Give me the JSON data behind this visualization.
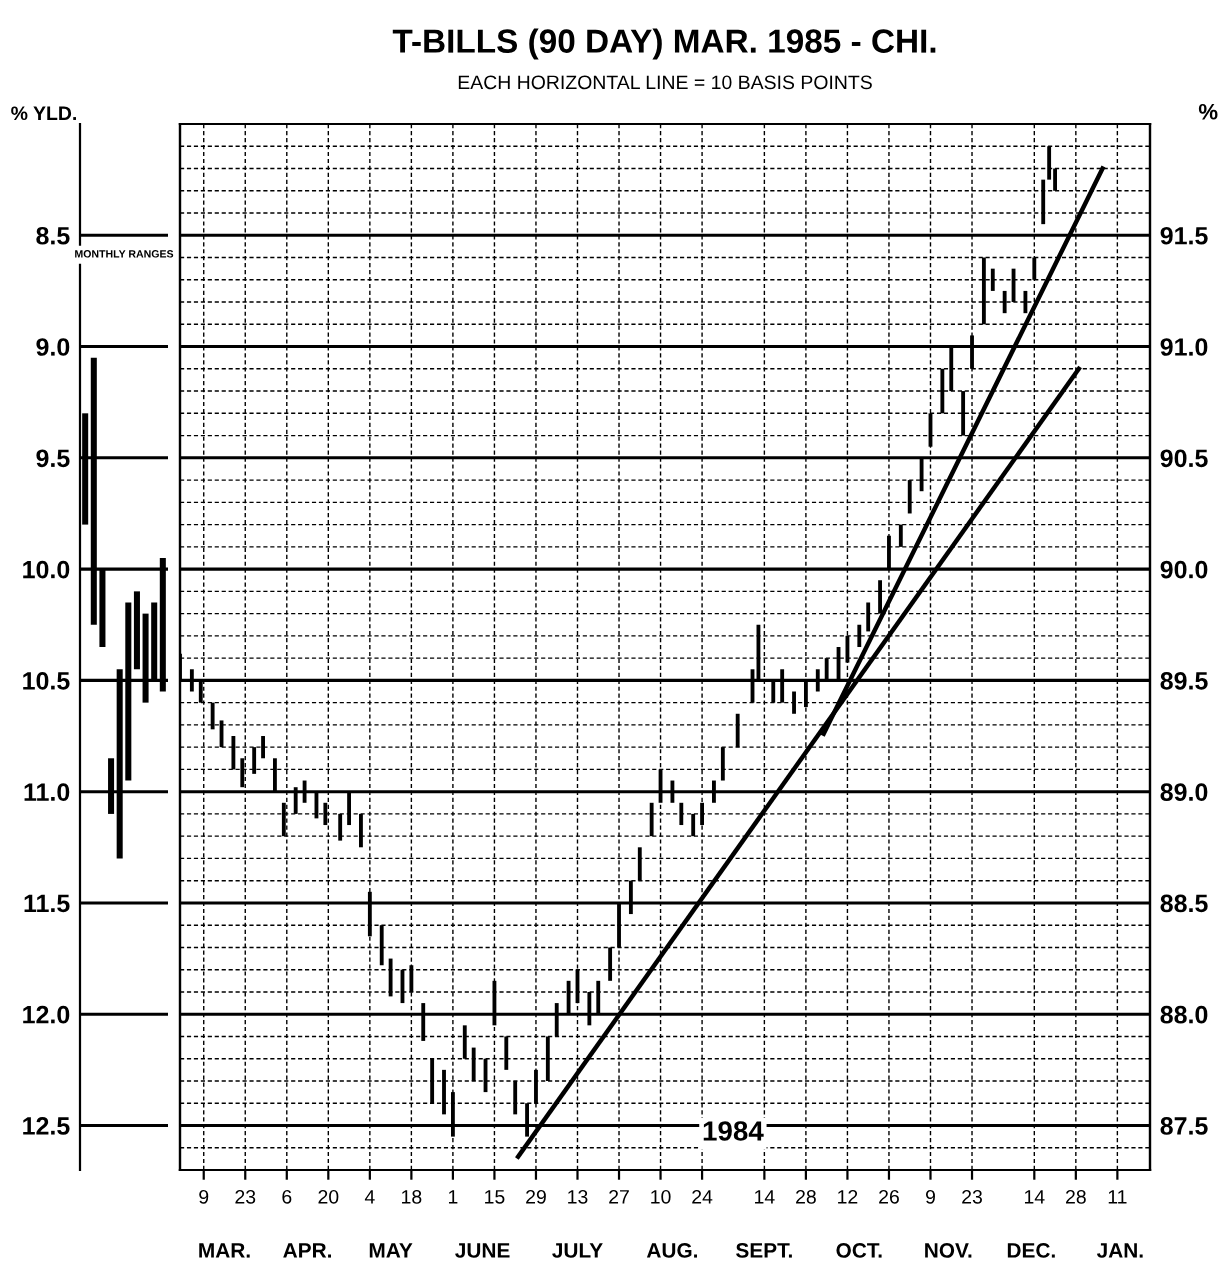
{
  "chart_data": [
    {
      "type": "bar",
      "ylabel": "% YLD.",
      "annotations": [
        "MONTHLY RANGES"
      ],
      "tick_labels": "y",
      "grid": "y",
      "categories": [
        null,
        null,
        null,
        null,
        null,
        null,
        null,
        null,
        null,
        null
      ],
      "ylim": [
        12.7,
        8.0
      ],
      "yticks": [
        {
          "value": 8.5,
          "label": "8.5"
        },
        {
          "value": 9.0,
          "label": "9.0"
        },
        {
          "value": 9.5,
          "label": "9.5"
        },
        {
          "value": 10.0,
          "label": "10.0"
        },
        {
          "value": 10.5,
          "label": "10.5"
        },
        {
          "value": 11.0,
          "label": "11.0"
        },
        {
          "value": 11.5,
          "label": "11.5"
        },
        {
          "value": 12.0,
          "label": "12.0"
        },
        {
          "value": 12.5,
          "label": "12.5"
        }
      ],
      "series": [
        {
          "color": "#000000",
          "base": [
            9.3,
            9.05,
            10.0,
            10.85,
            10.45,
            10.15,
            10.1,
            10.2,
            10.15,
            9.95
          ],
          "values": [
            0.5,
            1.2,
            0.35,
            0.25,
            0.85,
            0.8,
            0.35,
            0.4,
            0.35,
            0.6
          ]
        }
      ]
    },
    {
      "type": "bar",
      "title": "T-BILLS (90 DAY) MAR. 1985 - CHI.",
      "subtitle": "EACH HORIZONTAL LINE = 10 BASIS POINTS",
      "y2label": "%",
      "annotations": [
        "1984"
      ],
      "tick_labels": "x",
      "grid": true,
      "xlim": [
        "1984-03-01",
        "1985-01-22"
      ],
      "xticks": [
        {
          "value": "1984-03-09",
          "label": "9"
        },
        {
          "value": "1984-03-23",
          "label": "23"
        },
        {
          "value": "1984-04-06",
          "label": "6"
        },
        {
          "value": "1984-04-20",
          "label": "20"
        },
        {
          "value": "1984-05-04",
          "label": "4"
        },
        {
          "value": "1984-05-18",
          "label": "18"
        },
        {
          "value": "1984-06-01",
          "label": "1"
        },
        {
          "value": "1984-06-15",
          "label": "15"
        },
        {
          "value": "1984-06-29",
          "label": "29"
        },
        {
          "value": "1984-07-13",
          "label": "13"
        },
        {
          "value": "1984-07-27",
          "label": "27"
        },
        {
          "value": "1984-08-10",
          "label": "10"
        },
        {
          "value": "1984-08-24",
          "label": "24"
        },
        {
          "value": "1984-09-14",
          "label": "14"
        },
        {
          "value": "1984-09-28",
          "label": "28"
        },
        {
          "value": "1984-10-12",
          "label": "12"
        },
        {
          "value": "1984-10-26",
          "label": "26"
        },
        {
          "value": "1984-11-09",
          "label": "9"
        },
        {
          "value": "1984-11-23",
          "label": "23"
        },
        {
          "value": "1984-12-14",
          "label": "14"
        },
        {
          "value": "1984-12-28",
          "label": "28"
        },
        {
          "value": "1985-01-11",
          "label": "11"
        }
      ],
      "x2lim": [
        "1984-03-01",
        "1985-01-22"
      ],
      "x2ticks": [
        {
          "value": "1984-03-16",
          "label": "MAR."
        },
        {
          "value": "1984-04-13",
          "label": "APR."
        },
        {
          "value": "1984-05-11",
          "label": "MAY"
        },
        {
          "value": "1984-06-11",
          "label": "JUNE"
        },
        {
          "value": "1984-07-13",
          "label": "JULY"
        },
        {
          "value": "1984-08-14",
          "label": "AUG."
        },
        {
          "value": "1984-09-14",
          "label": "SEPT."
        },
        {
          "value": "1984-10-16",
          "label": "OCT."
        },
        {
          "value": "1984-11-15",
          "label": "NOV."
        },
        {
          "value": "1984-12-13",
          "label": "DEC."
        },
        {
          "value": "1985-01-12",
          "label": "JAN."
        }
      ],
      "ylim": [
        12.7,
        8.0
      ],
      "yticks": [
        {
          "value": 8.1,
          "label": null
        },
        {
          "value": 8.2,
          "label": null
        },
        {
          "value": 8.3,
          "label": null
        },
        {
          "value": 8.4,
          "label": null
        },
        8.5,
        {
          "value": 8.6,
          "label": null
        },
        {
          "value": 8.7,
          "label": null
        },
        {
          "value": 8.8,
          "label": null
        },
        {
          "value": 8.9,
          "label": null
        },
        9.0,
        {
          "value": 9.1,
          "label": null
        },
        {
          "value": 9.2,
          "label": null
        },
        {
          "value": 9.3,
          "label": null
        },
        {
          "value": 9.4,
          "label": null
        },
        9.5,
        {
          "value": 9.6,
          "label": null
        },
        {
          "value": 9.7,
          "label": null
        },
        {
          "value": 9.8,
          "label": null
        },
        {
          "value": 9.9,
          "label": null
        },
        10.0,
        {
          "value": 10.1,
          "label": null
        },
        {
          "value": 10.2,
          "label": null
        },
        {
          "value": 10.3,
          "label": null
        },
        {
          "value": 10.4,
          "label": null
        },
        10.5,
        {
          "value": 10.6,
          "label": null
        },
        {
          "value": 10.7,
          "label": null
        },
        {
          "value": 10.8,
          "label": null
        },
        {
          "value": 10.9,
          "label": null
        },
        11.0,
        {
          "value": 11.1,
          "label": null
        },
        {
          "value": 11.2,
          "label": null
        },
        {
          "value": 11.3,
          "label": null
        },
        {
          "value": 11.4,
          "label": null
        },
        11.5,
        {
          "value": 11.6,
          "label": null
        },
        {
          "value": 11.7,
          "label": null
        },
        {
          "value": 11.8,
          "label": null
        },
        {
          "value": 11.9,
          "label": null
        },
        12.0,
        {
          "value": 12.1,
          "label": null
        },
        {
          "value": 12.2,
          "label": null
        },
        {
          "value": 12.3,
          "label": null
        },
        {
          "value": 12.4,
          "label": null
        },
        12.5,
        {
          "value": 12.6,
          "label": null
        }
      ],
      "y2lim": [
        87.3,
        92.0
      ],
      "y2ticks": [
        {
          "value": 87.5,
          "label": "87.5"
        },
        {
          "value": 88.0,
          "label": "88.0"
        },
        {
          "value": 88.5,
          "label": "88.5"
        },
        {
          "value": 89.0,
          "label": "89.0"
        },
        {
          "value": 89.5,
          "label": "89.5"
        },
        {
          "value": 90.0,
          "label": "90.0"
        },
        {
          "value": 90.5,
          "label": "90.5"
        },
        {
          "value": 91.0,
          "label": "91.0"
        },
        {
          "value": 91.5,
          "label": "91.5"
        }
      ],
      "series": [
        {
          "type": "bar",
          "color": "#000000",
          "x": [
            "1984-03-01",
            "1984-03-05",
            "1984-03-08",
            "1984-03-12",
            "1984-03-15",
            "1984-03-19",
            "1984-03-22",
            "1984-03-26",
            "1984-03-29",
            "1984-04-02",
            "1984-04-05",
            "1984-04-09",
            "1984-04-12",
            "1984-04-16",
            "1984-04-19",
            "1984-04-24",
            "1984-04-27",
            "1984-05-01",
            "1984-05-04",
            "1984-05-08",
            "1984-05-11",
            "1984-05-15",
            "1984-05-18",
            "1984-05-22",
            "1984-05-25",
            "1984-05-29",
            "1984-06-01",
            "1984-06-05",
            "1984-06-08",
            "1984-06-12",
            "1984-06-15",
            "1984-06-19",
            "1984-06-22",
            "1984-06-26",
            "1984-06-29",
            "1984-07-03",
            "1984-07-06",
            "1984-07-10",
            "1984-07-13",
            "1984-07-17",
            "1984-07-20",
            "1984-07-24",
            "1984-07-27",
            "1984-07-31",
            "1984-08-03",
            "1984-08-07",
            "1984-08-10",
            "1984-08-14",
            "1984-08-17",
            "1984-08-21",
            "1984-08-24",
            "1984-08-28",
            "1984-08-31",
            "1984-09-05",
            "1984-09-10",
            "1984-09-12",
            "1984-09-17",
            "1984-09-20",
            "1984-09-24",
            "1984-09-28",
            "1984-10-02",
            "1984-10-05",
            "1984-10-09",
            "1984-10-12",
            "1984-10-16",
            "1984-10-19",
            "1984-10-23",
            "1984-10-26",
            "1984-10-30",
            "1984-11-02",
            "1984-11-06",
            "1984-11-09",
            "1984-11-13",
            "1984-11-16",
            "1984-11-20",
            "1984-11-23",
            "1984-11-27",
            "1984-11-30",
            "1984-12-04",
            "1984-12-07",
            "1984-12-11",
            "1984-12-14",
            "1984-12-17",
            "1984-12-19",
            "1984-12-21"
          ],
          "base": [
            10.38,
            10.45,
            10.5,
            10.6,
            10.68,
            10.75,
            10.85,
            10.8,
            10.75,
            10.85,
            11.05,
            10.98,
            10.95,
            11.0,
            11.05,
            11.1,
            11.0,
            11.1,
            11.45,
            11.6,
            11.75,
            11.8,
            11.78,
            11.95,
            12.2,
            12.25,
            12.35,
            12.05,
            12.15,
            12.2,
            11.85,
            12.1,
            12.3,
            12.4,
            12.25,
            12.1,
            11.95,
            11.85,
            11.8,
            11.9,
            11.85,
            11.7,
            11.5,
            11.4,
            11.25,
            11.05,
            10.9,
            10.95,
            11.05,
            11.1,
            11.05,
            10.95,
            10.8,
            10.65,
            10.45,
            10.25,
            10.5,
            10.45,
            10.55,
            10.5,
            10.45,
            10.4,
            10.35,
            10.3,
            10.25,
            10.15,
            10.05,
            9.85,
            9.8,
            9.6,
            9.5,
            9.3,
            9.1,
            9.0,
            9.2,
            8.95,
            8.6,
            8.65,
            8.75,
            8.65,
            8.75,
            8.6,
            8.25,
            8.1,
            8.2
          ],
          "values": [
            0.12,
            0.1,
            0.1,
            0.12,
            0.12,
            0.15,
            0.13,
            0.12,
            0.1,
            0.15,
            0.15,
            0.12,
            0.1,
            0.12,
            0.1,
            0.12,
            0.15,
            0.15,
            0.2,
            0.18,
            0.17,
            0.15,
            0.12,
            0.17,
            0.2,
            0.2,
            0.2,
            0.15,
            0.15,
            0.15,
            0.2,
            0.15,
            0.15,
            0.15,
            0.15,
            0.2,
            0.15,
            0.15,
            0.15,
            0.15,
            0.15,
            0.15,
            0.2,
            0.15,
            0.15,
            0.15,
            0.15,
            0.1,
            0.1,
            0.1,
            0.1,
            0.1,
            0.15,
            0.15,
            0.15,
            0.25,
            0.1,
            0.15,
            0.1,
            0.12,
            0.1,
            0.1,
            0.15,
            0.12,
            0.1,
            0.13,
            0.15,
            0.15,
            0.1,
            0.15,
            0.15,
            0.15,
            0.2,
            0.2,
            0.2,
            0.15,
            0.3,
            0.1,
            0.1,
            0.15,
            0.1,
            0.1,
            0.2,
            0.15,
            0.1
          ]
        },
        {
          "type": "line",
          "color": "#000000",
          "x": [
            "1984-06-23",
            "1984-12-29"
          ],
          "values": [
            12.64,
            9.1
          ]
        },
        {
          "type": "line",
          "color": "#000000",
          "x": [
            "1984-10-04",
            "1985-01-06"
          ],
          "values": [
            10.74,
            8.2
          ]
        }
      ]
    }
  ]
}
